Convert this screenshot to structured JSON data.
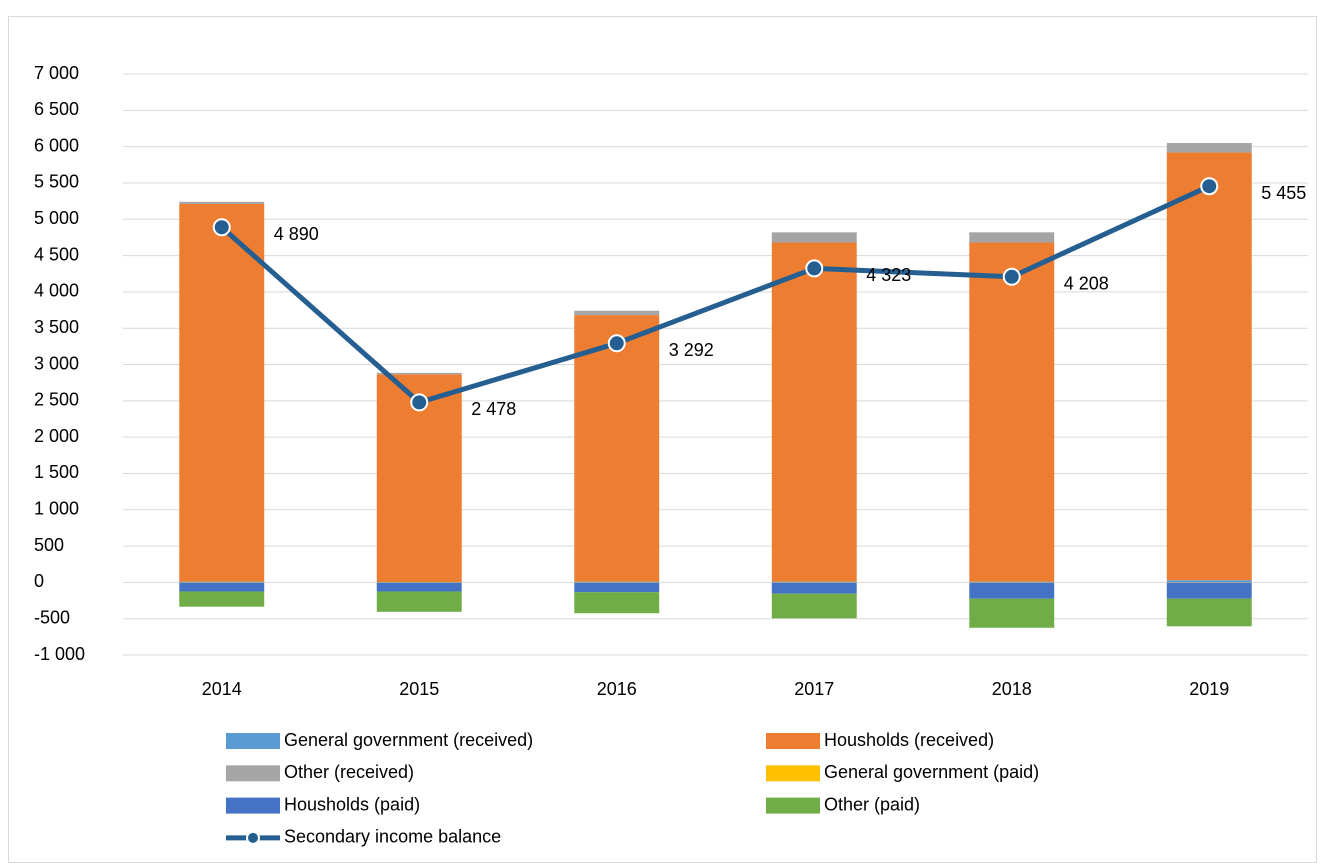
{
  "chart_data": {
    "type": "bar",
    "categories": [
      "2014",
      "2015",
      "2016",
      "2017",
      "2018",
      "2019"
    ],
    "series": [
      {
        "name": "General government (received)",
        "color": "#5b9bd5",
        "type": "bar",
        "values": [
          10,
          5,
          10,
          10,
          10,
          30
        ]
      },
      {
        "name": "Housholds (received)",
        "color": "#ed7d31",
        "type": "bar",
        "values": [
          5200,
          2860,
          3670,
          4670,
          4670,
          5890
        ]
      },
      {
        "name": "Other (received)",
        "color": "#a5a5a5",
        "type": "bar",
        "values": [
          30,
          20,
          60,
          140,
          140,
          130
        ]
      },
      {
        "name": "General government (paid)",
        "color": "#ffc000",
        "type": "bar",
        "values": [
          -5,
          -5,
          -5,
          -5,
          -5,
          -5
        ]
      },
      {
        "name": "Housholds (paid)",
        "color": "#4472c4",
        "type": "bar",
        "values": [
          -120,
          -120,
          -130,
          -150,
          -220,
          -220
        ]
      },
      {
        "name": "Other (paid)",
        "color": "#70ad47",
        "type": "bar",
        "values": [
          -210,
          -280,
          -290,
          -340,
          -400,
          -380
        ]
      },
      {
        "name": "Secondary income balance",
        "color": "#255e91",
        "type": "line",
        "values": [
          4890,
          2478,
          3292,
          4323,
          4208,
          5455
        ],
        "value_labels": [
          "4 890",
          "2 478",
          "3 292",
          "4 323",
          "4 208",
          "5 455"
        ]
      }
    ],
    "ylim": [
      -1000,
      7000
    ],
    "yticks": [
      {
        "value": -1000,
        "label": "-1 000"
      },
      {
        "value": -500,
        "label": "-500"
      },
      0,
      500,
      {
        "value": 1000,
        "label": "1 000"
      },
      {
        "value": 1500,
        "label": "1 500"
      },
      {
        "value": 2000,
        "label": "2 000"
      },
      {
        "value": 2500,
        "label": "2 500"
      },
      {
        "value": 3000,
        "label": "3 000"
      },
      {
        "value": 3500,
        "label": "3 500"
      },
      {
        "value": 4000,
        "label": "4 000"
      },
      {
        "value": 4500,
        "label": "4 500"
      },
      {
        "value": 5000,
        "label": "5 000"
      },
      {
        "value": 5500,
        "label": "5 500"
      },
      {
        "value": 6000,
        "label": "6 000"
      },
      {
        "value": 6500,
        "label": "6 500"
      },
      {
        "value": 7000,
        "label": "7 000"
      }
    ],
    "grid": true,
    "legend": "bottom"
  }
}
